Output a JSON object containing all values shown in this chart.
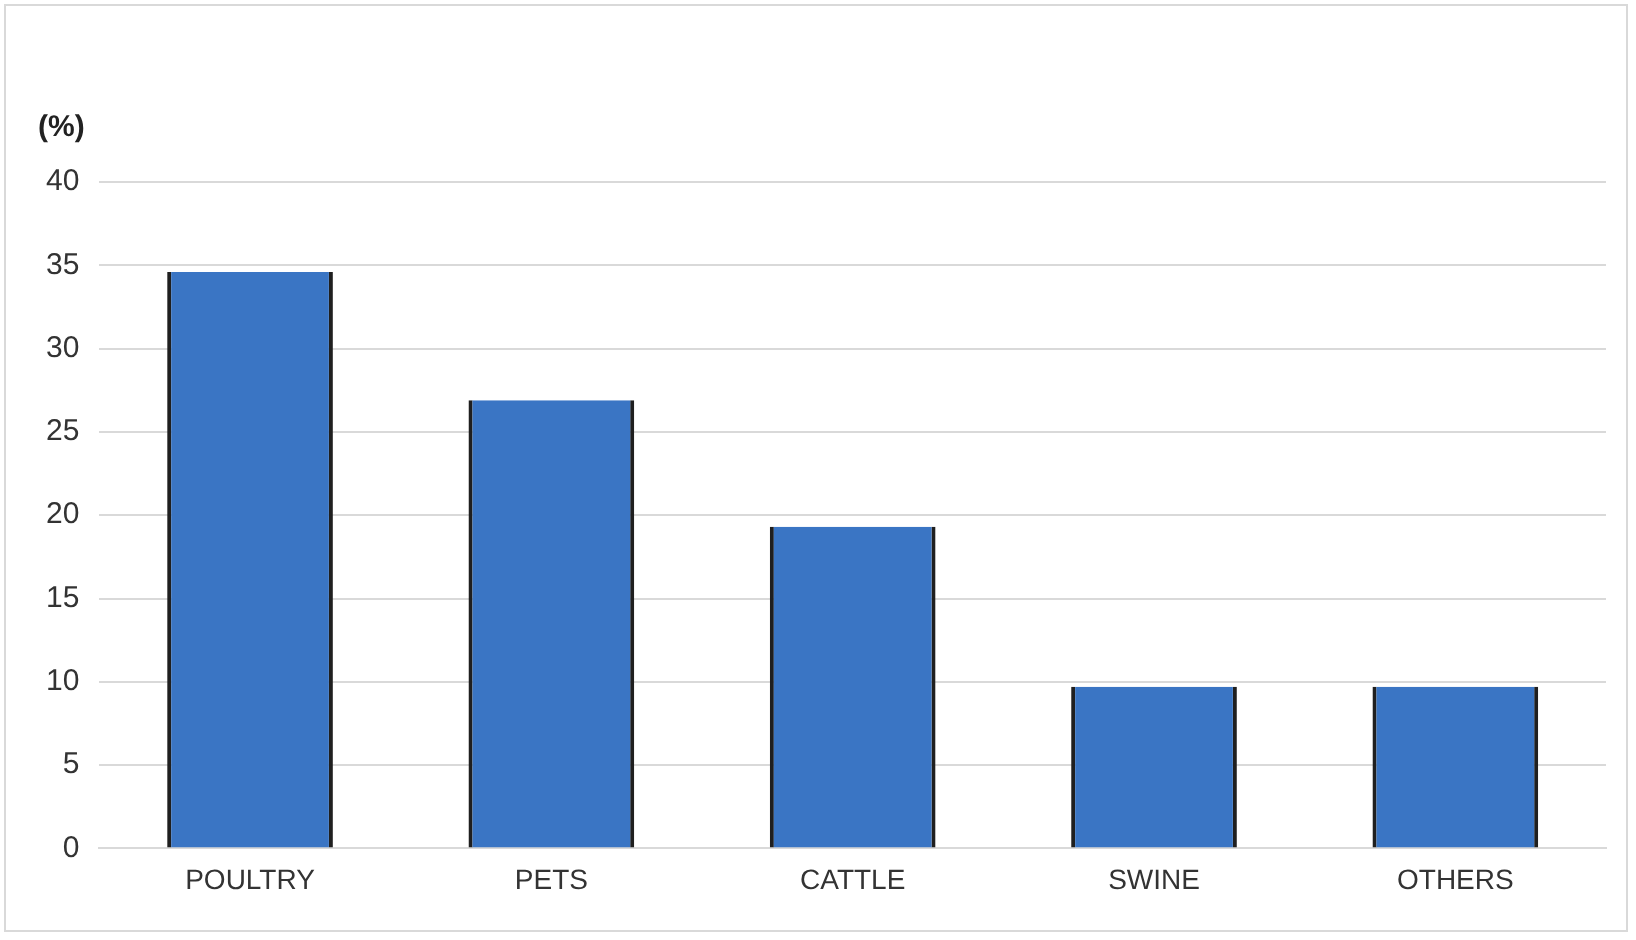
{
  "chart_data": {
    "type": "bar",
    "ylabel": "(%)",
    "categories": [
      "POULTRY",
      "PETS",
      "CATTLE",
      "SWINE",
      "OTHERS"
    ],
    "values": [
      34.6,
      26.9,
      19.3,
      9.7,
      9.7
    ],
    "color": "#3a75c4",
    "ylim": [
      0,
      40
    ],
    "yticks": [
      0,
      5,
      10,
      15,
      20,
      25,
      30,
      35,
      40
    ],
    "grid": "y",
    "legend": false
  }
}
